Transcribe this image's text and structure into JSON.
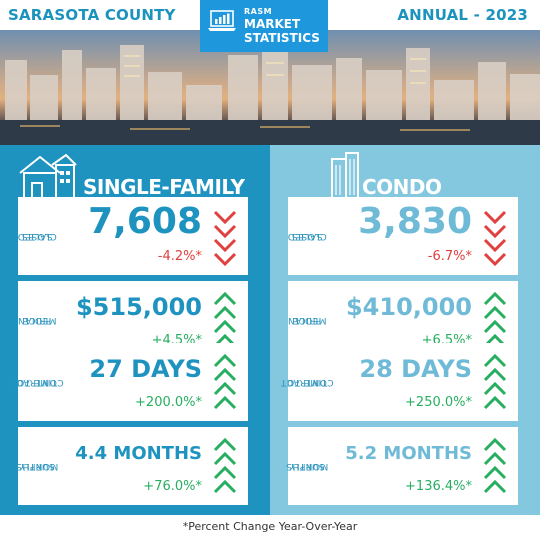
{
  "header": {
    "county": "SARASOTA COUNTY",
    "period": "ANNUAL - 2023",
    "badge": {
      "org": "RASM",
      "line1": "MARKET",
      "line2": "STATISTICS",
      "icon": "laptop-chart-icon"
    }
  },
  "colors": {
    "single_family": "#1e93c0",
    "condo": "#83c8de",
    "badge": "#1e97dd",
    "negative": "#e0403e",
    "positive": "#27ae60"
  },
  "single_family": {
    "title": "SINGLE-FAMILY",
    "icon": "house-icon",
    "metrics": [
      {
        "label1": "CLOSED",
        "label2": "SALES",
        "value": "7,608",
        "change": "-4.2%*",
        "direction": "down"
      },
      {
        "label1": "MEDIAN",
        "label2": "PRICE",
        "value": "$515,000",
        "change": "+4.5%*",
        "direction": "up"
      },
      {
        "label1": "TIME TO",
        "label2": "CONTRACT",
        "value": "27 DAYS",
        "change": "+200.0%*",
        "direction": "up"
      },
      {
        "label1": "MONTHS",
        "label2": "SUPPLY",
        "value": "4.4 MONTHS",
        "change": "+76.0%*",
        "direction": "up"
      }
    ]
  },
  "condo": {
    "title": "CONDO",
    "icon": "building-icon",
    "metrics": [
      {
        "label1": "CLOSED",
        "label2": "SALES",
        "value": "3,830",
        "change": "-6.7%*",
        "direction": "down"
      },
      {
        "label1": "MEDIAN",
        "label2": "PRICE",
        "value": "$410,000",
        "change": "+6.5%*",
        "direction": "up"
      },
      {
        "label1": "TIME TO",
        "label2": "CONTRACT",
        "value": "28 DAYS",
        "change": "+250.0%*",
        "direction": "up"
      },
      {
        "label1": "MONTHS",
        "label2": "SUPPLY",
        "value": "5.2 MONTHS",
        "change": "+136.4%*",
        "direction": "up"
      }
    ]
  },
  "footnote": "*Percent Change Year-Over-Year"
}
